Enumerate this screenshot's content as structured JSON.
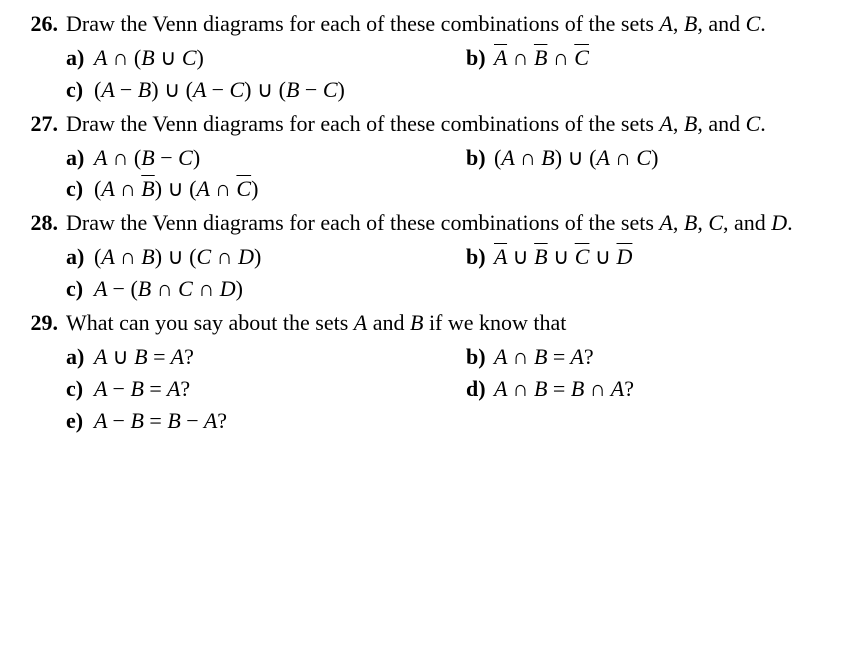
{
  "problems": [
    {
      "number": "26.",
      "text_parts": [
        "Draw the Venn diagrams for each of these combinations of the sets ",
        "A",
        ", ",
        "B",
        ", and ",
        "C",
        "."
      ],
      "rows": [
        {
          "left": {
            "label": "a)",
            "math_html": "A <span class='rm'>∩ (</span>B <span class='rm'>∪</span> C<span class='rm'>)</span>"
          },
          "right": {
            "label": "b)",
            "math_html": "<span class='overline'>A</span> <span class='rm'>∩</span> <span class='overline'>B</span> <span class='rm'>∩</span> <span class='overline'>C</span>"
          }
        },
        {
          "left": {
            "label": "c)",
            "math_html": "<span class='rm'>(</span>A <span class='rm'>−</span> B<span class='rm'>) ∪ (</span>A <span class='rm'>−</span> C<span class='rm'>) ∪ (</span>B <span class='rm'>−</span> C<span class='rm'>)</span>"
          }
        }
      ]
    },
    {
      "number": "27.",
      "text_parts": [
        "Draw the Venn diagrams for each of these combinations of the sets ",
        "A",
        ", ",
        "B",
        ", and ",
        "C",
        "."
      ],
      "rows": [
        {
          "left": {
            "label": "a)",
            "math_html": "A <span class='rm'>∩ (</span>B <span class='rm'>−</span> C<span class='rm'>)</span>"
          },
          "right": {
            "label": "b)",
            "math_html": "<span class='rm'>(</span>A <span class='rm'>∩</span> B<span class='rm'>) ∪ (</span>A <span class='rm'>∩</span> C<span class='rm'>)</span>"
          }
        },
        {
          "left": {
            "label": "c)",
            "math_html": "<span class='rm'>(</span>A <span class='rm'>∩</span> <span class='overline'>B</span><span class='rm'>) ∪ (</span>A <span class='rm'>∩</span> <span class='overline'>C</span><span class='rm'>)</span>"
          }
        }
      ]
    },
    {
      "number": "28.",
      "text_parts": [
        "Draw the Venn diagrams for each of these combinations of the sets ",
        "A",
        ", ",
        "B",
        ", ",
        "C",
        ", and ",
        "D",
        "."
      ],
      "rows": [
        {
          "left": {
            "label": "a)",
            "math_html": "<span class='rm'>(</span>A <span class='rm'>∩</span> B<span class='rm'>) ∪ (</span>C <span class='rm'>∩</span> D<span class='rm'>)</span>"
          },
          "right": {
            "label": "b)",
            "math_html": "<span class='overline'>A</span> <span class='rm'>∪</span> <span class='overline'>B</span> <span class='rm'>∪</span> <span class='overline'>C</span> <span class='rm'>∪</span> <span class='overline'>D</span>"
          }
        },
        {
          "left": {
            "label": "c)",
            "math_html": "A <span class='rm'>− (</span>B <span class='rm'>∩</span> C <span class='rm'>∩</span> D<span class='rm'>)</span>"
          }
        }
      ]
    },
    {
      "number": "29.",
      "text_parts": [
        "What can you say about the sets ",
        "A",
        " and ",
        "B",
        " if we know that"
      ],
      "rows": [
        {
          "left": {
            "label": "a)",
            "math_html": "A <span class='rm'>∪</span> B <span class='rm'>=</span> A<span class='rm'>?</span>"
          },
          "right": {
            "label": "b)",
            "math_html": "A <span class='rm'>∩</span> B <span class='rm'>=</span> A<span class='rm'>?</span>"
          }
        },
        {
          "left": {
            "label": "c)",
            "math_html": "A <span class='rm'>−</span> B <span class='rm'>=</span> A<span class='rm'>?</span>"
          },
          "right": {
            "label": "d)",
            "math_html": "A <span class='rm'>∩</span> B <span class='rm'>=</span> B <span class='rm'>∩</span> A<span class='rm'>?</span>"
          }
        },
        {
          "left": {
            "label": "e)",
            "math_html": "A <span class='rm'>−</span> B <span class='rm'>=</span> B <span class='rm'>−</span> A<span class='rm'>?</span>"
          }
        }
      ]
    }
  ]
}
